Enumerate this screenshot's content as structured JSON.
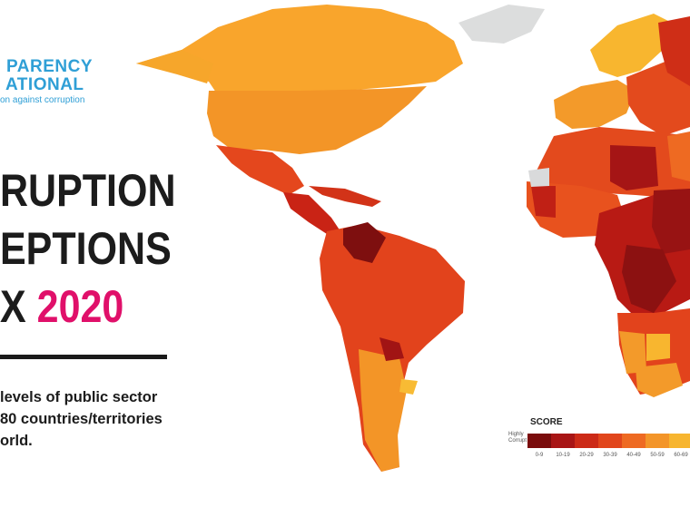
{
  "brand": {
    "line1": "PARENCY",
    "line2": "ATIONAL",
    "tagline": "on against corruption"
  },
  "headline": {
    "line1": "RUPTION",
    "line2": "EPTIONS",
    "line3_prefix": "X",
    "line3_year": "2020"
  },
  "description": {
    "line1": "levels of public sector",
    "line2": "80 countries/territories",
    "line3": "orld."
  },
  "legend": {
    "title": "SCORE",
    "low_label_1": "Highly",
    "low_label_2": "Corrupt",
    "ranges": [
      "0-9",
      "10-19",
      "20-29",
      "30-39",
      "40-49",
      "50-59",
      "60-69"
    ],
    "colors": [
      "#7a0c0c",
      "#a81515",
      "#cc2a17",
      "#e1461c",
      "#ee6a22",
      "#f39529",
      "#f7b52f"
    ]
  },
  "map_colors": {
    "ocean": "#ffffff",
    "no_data": "#d9dadb",
    "greenland": "#e0e1e2"
  }
}
